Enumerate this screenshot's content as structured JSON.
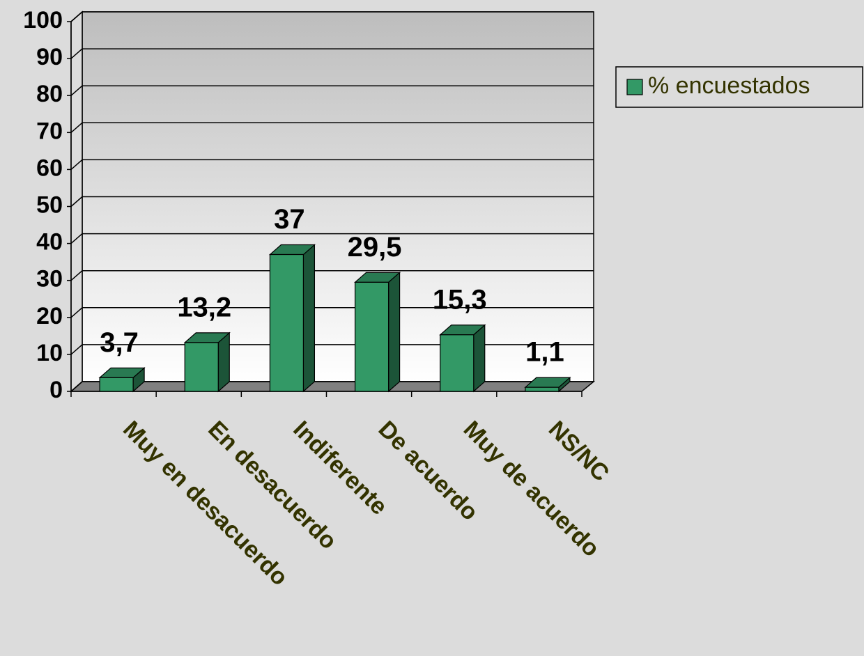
{
  "chart_data": {
    "type": "bar3d",
    "categories": [
      "Muy en desacuerdo",
      "En desacuerdo",
      "Indiferente",
      "De acuerdo",
      "Muy de acuerdo",
      "NS/NC"
    ],
    "series": [
      {
        "name": "% encuestados",
        "color": "#339966",
        "values": [
          3.7,
          13.2,
          37,
          29.5,
          15.3,
          1.1
        ],
        "value_labels": [
          "3,7",
          "13,2",
          "37",
          "29,5",
          "15,3",
          "1,1"
        ]
      }
    ],
    "ylim": [
      0,
      100
    ],
    "yticks": [
      0,
      10,
      20,
      30,
      40,
      50,
      60,
      70,
      80,
      90,
      100
    ],
    "grid": true,
    "legend": "right"
  }
}
